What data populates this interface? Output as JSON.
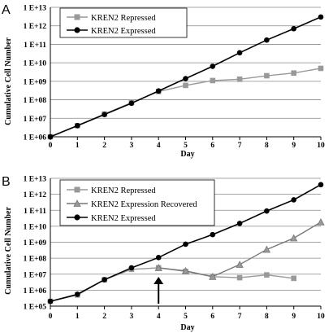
{
  "chart_data": [
    {
      "panel": "A",
      "type": "line",
      "xlabel": "Day",
      "ylabel": "Cumulative Cell Number",
      "yscale": "log",
      "ylim": [
        1000000,
        10000000000000
      ],
      "xlim": [
        0,
        10
      ],
      "x_ticks": [
        "0",
        "1",
        "2",
        "3",
        "4",
        "5",
        "6",
        "7",
        "8",
        "9",
        "10"
      ],
      "y_ticks": [
        "1 E+06",
        "1 E+07",
        "1 E+08",
        "1 E+09",
        "1 E+10",
        "1 E+11",
        "1 E+12",
        "1 E+13"
      ],
      "grid": true,
      "legend": "top-left",
      "series": [
        {
          "name": "KREN2 Repressed",
          "color": "#999999",
          "marker": "square",
          "points": [
            [
              0,
              1000000
            ],
            [
              1,
              4000000
            ],
            [
              2,
              17000000
            ],
            [
              3,
              70000000
            ],
            [
              4,
              280000000
            ],
            [
              5,
              600000000
            ],
            [
              6,
              1100000000
            ],
            [
              7,
              1300000000
            ],
            [
              8,
              2000000000
            ],
            [
              9,
              2800000000
            ],
            [
              10,
              5000000000
            ]
          ]
        },
        {
          "name": "KREN2 Expressed",
          "color": "#000000",
          "marker": "circle",
          "points": [
            [
              0,
              1000000
            ],
            [
              1,
              4000000
            ],
            [
              2,
              16000000
            ],
            [
              3,
              65000000
            ],
            [
              4,
              300000000
            ],
            [
              5,
              1400000000
            ],
            [
              6,
              6500000000
            ],
            [
              7,
              35000000000
            ],
            [
              8,
              170000000000
            ],
            [
              9,
              700000000000
            ],
            [
              10,
              3000000000000
            ]
          ]
        }
      ]
    },
    {
      "panel": "B",
      "type": "line",
      "xlabel": "Day",
      "ylabel": "Cumulative Cell Number",
      "yscale": "log",
      "ylim": [
        100000,
        10000000000000
      ],
      "xlim": [
        0,
        10
      ],
      "x_ticks": [
        "0",
        "1",
        "2",
        "3",
        "4",
        "5",
        "6",
        "7",
        "8",
        "9",
        "10"
      ],
      "y_ticks": [
        "1 E+05",
        "1 E+06",
        "1 E+07",
        "1 E+08",
        "1 E+09",
        "1 E+10",
        "1 E+11",
        "1 E+12",
        "1 E+13"
      ],
      "grid": true,
      "legend": "top-left",
      "annotation": {
        "type": "arrow",
        "x": 4,
        "direction": "up"
      },
      "series": [
        {
          "name": "KREN2 Repressed",
          "color": "#999999",
          "marker": "square",
          "points": [
            [
              0,
              200000
            ],
            [
              1,
              500000
            ],
            [
              2,
              4500000
            ],
            [
              3,
              20000000
            ],
            [
              4,
              25000000
            ],
            [
              5,
              15000000
            ],
            [
              6,
              7000000
            ],
            [
              7,
              6000000
            ],
            [
              8,
              9000000
            ],
            [
              9,
              5500000
            ]
          ]
        },
        {
          "name": "KREN2 Expression Recovered",
          "color": "#777777",
          "marker": "triangle",
          "points": [
            [
              4,
              25000000
            ],
            [
              5,
              16000000
            ],
            [
              6,
              7000000
            ],
            [
              7,
              40000000
            ],
            [
              8,
              350000000
            ],
            [
              9,
              1800000000
            ],
            [
              10,
              18000000000
            ]
          ]
        },
        {
          "name": "KREN2 Expressed",
          "color": "#000000",
          "marker": "circle",
          "points": [
            [
              0,
              200000
            ],
            [
              1,
              550000
            ],
            [
              2,
              4500000
            ],
            [
              3,
              25000000
            ],
            [
              4,
              110000000
            ],
            [
              5,
              750000000
            ],
            [
              6,
              3000000000
            ],
            [
              7,
              15000000000
            ],
            [
              8,
              90000000000
            ],
            [
              9,
              450000000000
            ],
            [
              10,
              4000000000000
            ]
          ]
        }
      ]
    }
  ]
}
